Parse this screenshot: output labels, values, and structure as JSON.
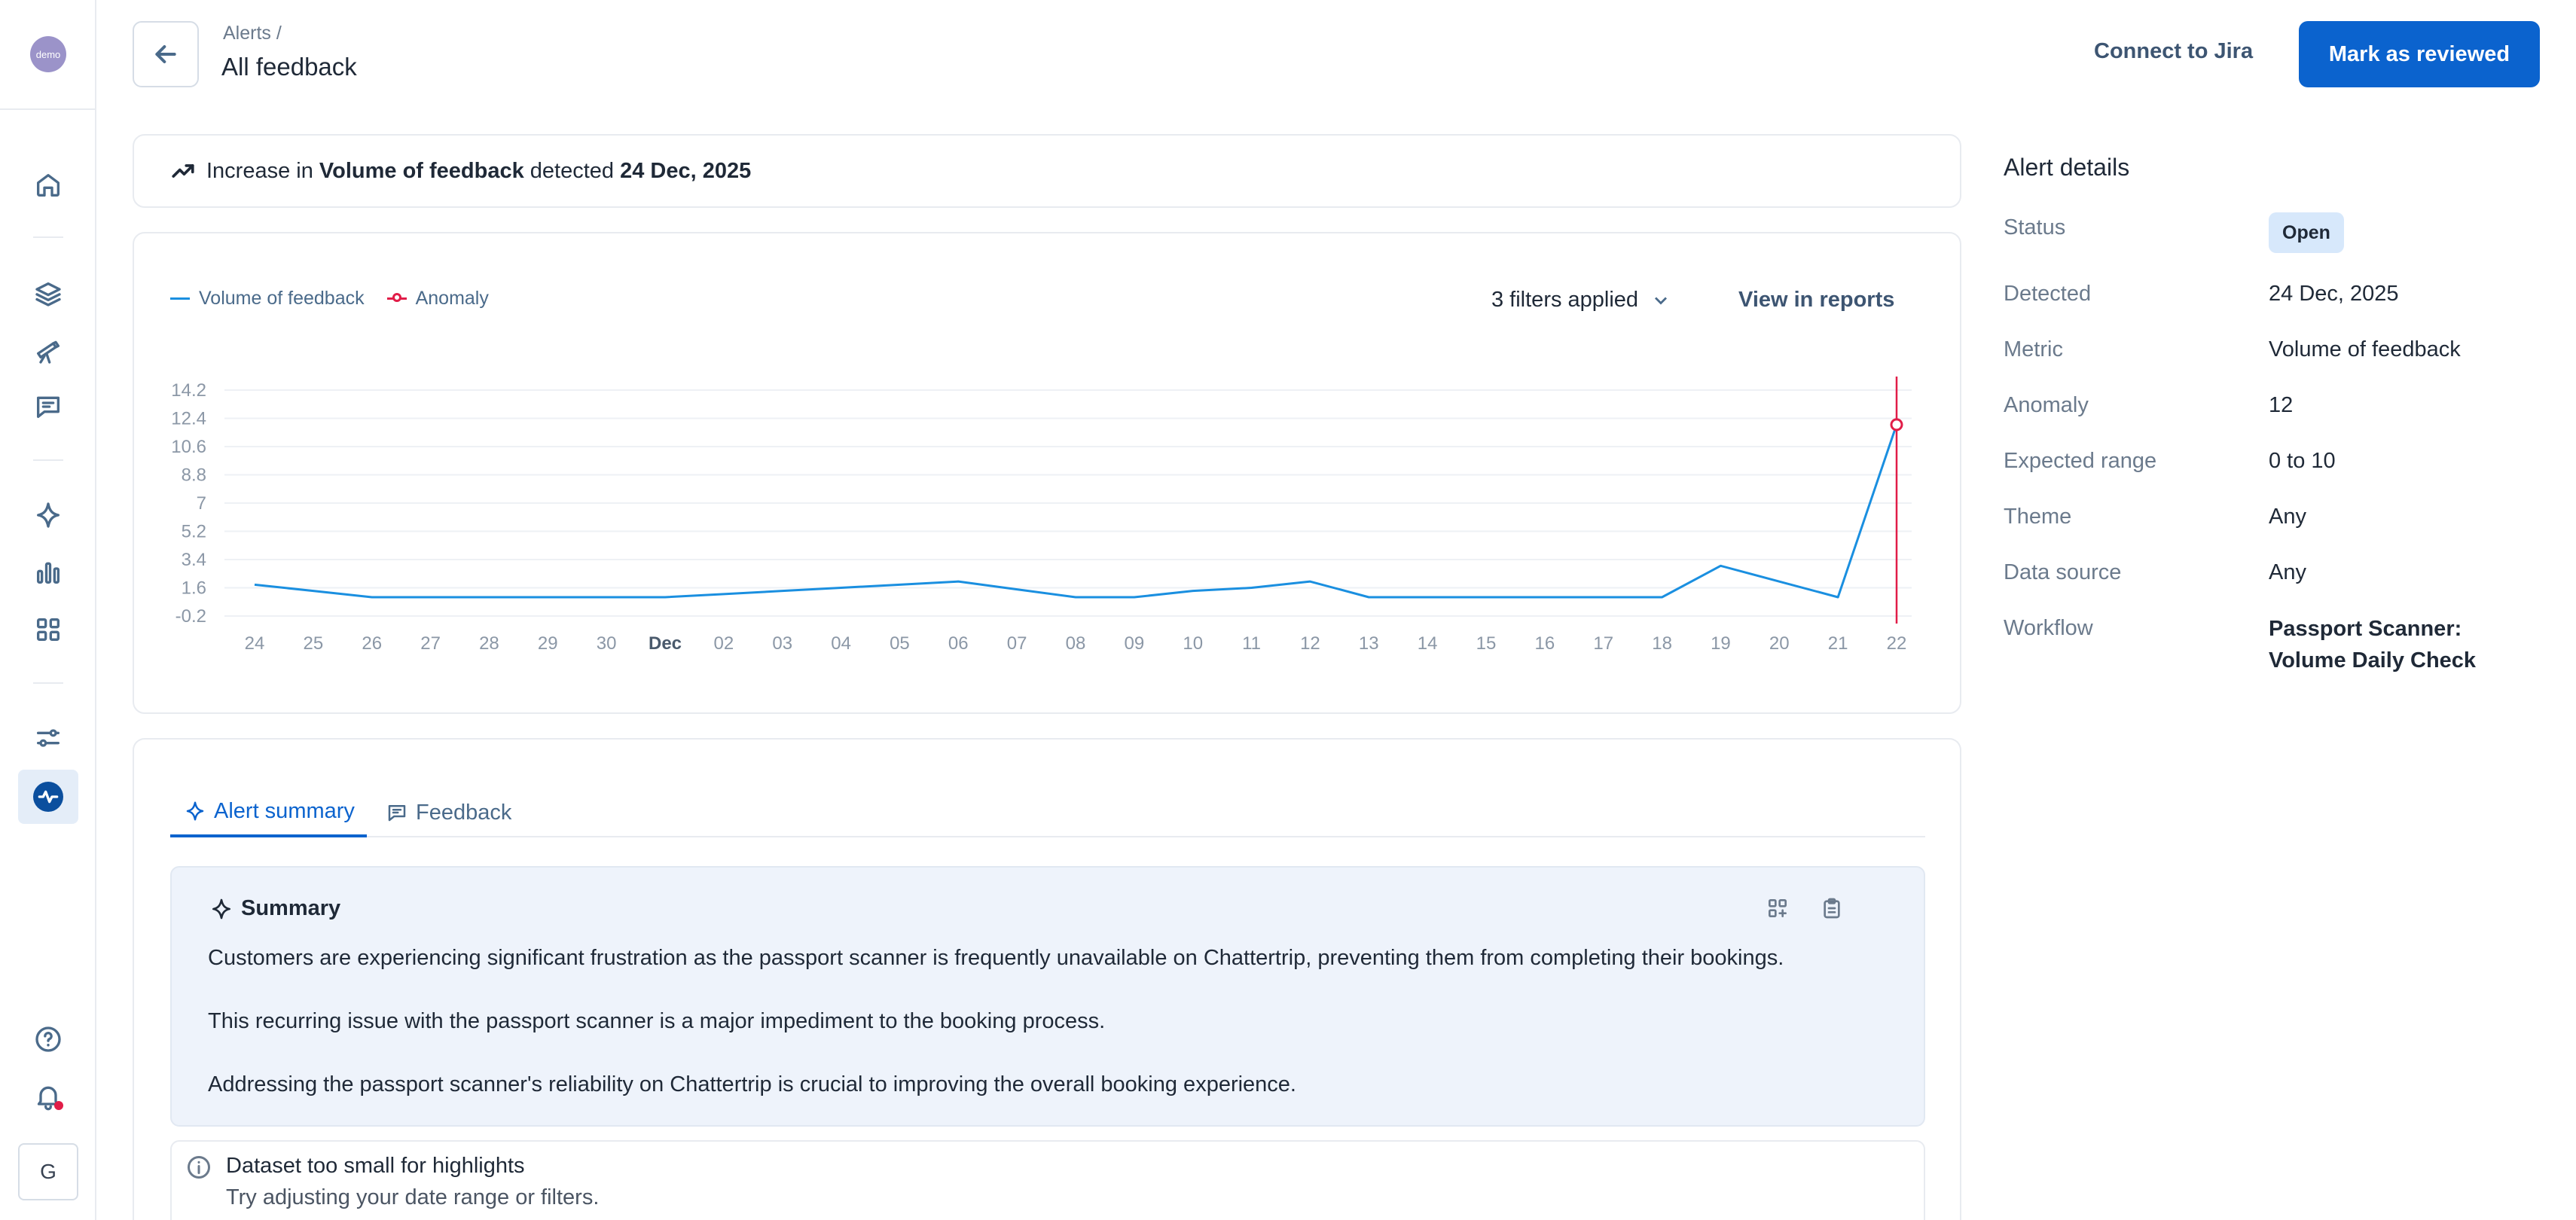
{
  "sidebar": {
    "logo_text": "demo",
    "user_initial": "G",
    "items": [
      {
        "name": "home"
      },
      {
        "name": "layers"
      },
      {
        "name": "telescope"
      },
      {
        "name": "messages"
      },
      {
        "name": "sparkle"
      },
      {
        "name": "bar-chart"
      },
      {
        "name": "grid"
      },
      {
        "name": "sliders"
      },
      {
        "name": "pulse"
      },
      {
        "name": "help"
      },
      {
        "name": "bell"
      }
    ]
  },
  "header": {
    "breadcrumb": "Alerts  /",
    "title": "All feedback",
    "jira_label": "Connect to Jira",
    "review_label": "Mark as reviewed"
  },
  "banner": {
    "prefix": "Increase in ",
    "metric": "Volume of feedback",
    "middle": " detected ",
    "date": "24 Dec, 2025"
  },
  "chart_card": {
    "filters_label": "3 filters applied",
    "view_reports_label": "View in reports"
  },
  "chart_data": {
    "type": "line",
    "x": [
      "24",
      "25",
      "26",
      "27",
      "28",
      "29",
      "30",
      "Dec",
      "02",
      "03",
      "04",
      "05",
      "06",
      "07",
      "08",
      "09",
      "10",
      "11",
      "12",
      "13",
      "14",
      "15",
      "16",
      "17",
      "18",
      "19",
      "20",
      "21",
      "22"
    ],
    "series": [
      {
        "name": "Volume of feedback",
        "color": "#1a8fe0",
        "values": [
          1.8,
          1.4,
          1,
          1,
          1,
          1,
          1,
          1,
          1.2,
          1.4,
          1.6,
          1.8,
          2,
          1.5,
          1,
          1,
          1.4,
          1.6,
          2,
          1,
          1,
          1,
          1,
          1,
          1,
          3,
          2,
          1,
          12
        ]
      }
    ],
    "anomaly": {
      "name": "Anomaly",
      "x": "22",
      "value": 12,
      "color": "#e11d48"
    },
    "yticks": [
      "14.2",
      "12.4",
      "10.6",
      "8.8",
      "7",
      "5.2",
      "3.4",
      "1.6",
      "-0.2"
    ],
    "ylim": [
      -0.2,
      14.2
    ],
    "grid": true,
    "legend": "top-left"
  },
  "tabs": [
    {
      "label": "Alert summary",
      "active": true
    },
    {
      "label": "Feedback",
      "active": false
    }
  ],
  "summary": {
    "heading": "Summary",
    "paragraphs": [
      "Customers are experiencing significant frustration as the passport scanner is frequently unavailable on Chattertrip, preventing them from completing their bookings.",
      "This recurring issue with the passport scanner is a major impediment to the booking process.",
      "Addressing the passport scanner's reliability on Chattertrip is crucial to improving the overall booking experience."
    ]
  },
  "empty_state": {
    "title": "Dataset too small for highlights",
    "subtitle": "Try adjusting your date range or filters."
  },
  "details": {
    "title": "Alert details",
    "status_label": "Status",
    "status_value": "Open",
    "detected_label": "Detected",
    "detected_value": "24 Dec, 2025",
    "metric_label": "Metric",
    "metric_value": "Volume of feedback",
    "anomaly_label": "Anomaly",
    "anomaly_value": "12",
    "expected_label": "Expected range",
    "expected_value": "0 to 10",
    "theme_label": "Theme",
    "theme_value": "Any",
    "source_label": "Data source",
    "source_value": "Any",
    "workflow_label": "Workflow",
    "workflow_value": "Passport Scanner: Volume Daily Check"
  }
}
